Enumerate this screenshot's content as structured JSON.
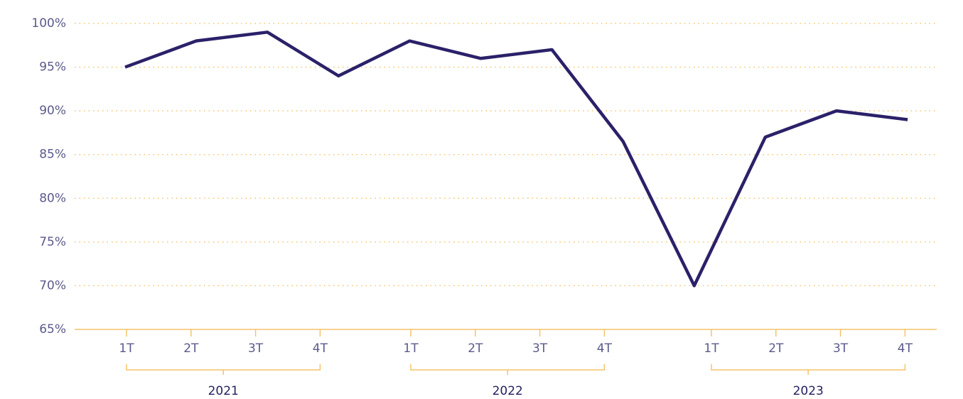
{
  "chart_data": {
    "type": "line",
    "categories": [
      "1T",
      "2T",
      "3T",
      "4T",
      "1T",
      "2T",
      "3T",
      "4T",
      "1T",
      "2T",
      "3T",
      "4T"
    ],
    "groups": [
      "2021",
      "2022",
      "2023"
    ],
    "values": [
      95,
      98,
      99,
      94,
      98,
      96,
      97,
      86.5,
      70,
      87,
      90,
      89
    ],
    "color": "#2b2169",
    "ylim": [
      65,
      100
    ],
    "yticks": [
      {
        "value": 65,
        "label": "65%"
      },
      {
        "value": 70,
        "label": "70%"
      },
      {
        "value": 75,
        "label": "75%"
      },
      {
        "value": 80,
        "label": "80%"
      },
      {
        "value": 85,
        "label": "85%"
      },
      {
        "value": 90,
        "label": "90%"
      },
      {
        "value": 95,
        "label": "95%"
      },
      {
        "value": 100,
        "label": "100%"
      }
    ],
    "grid": true
  }
}
